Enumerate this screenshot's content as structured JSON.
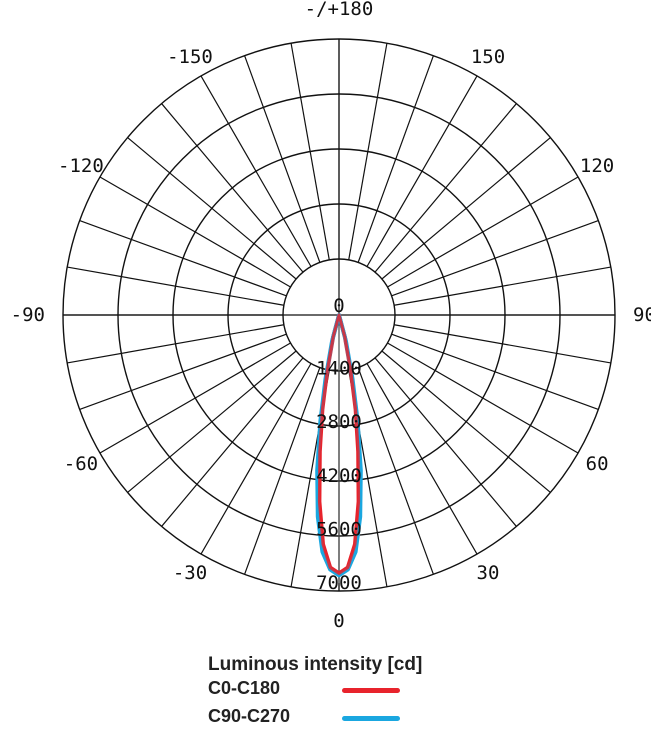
{
  "chart_data": {
    "type": "polar",
    "angle_ticks": [
      "-/+180",
      "150",
      "120",
      "90",
      "60",
      "30",
      "0",
      "-30",
      "-60",
      "-90",
      "-120",
      "-150"
    ],
    "angle_tick_values": [
      180,
      150,
      120,
      90,
      60,
      30,
      0,
      -30,
      -60,
      -90,
      -120,
      -150
    ],
    "radial_ticks": [
      "0",
      "1400",
      "2800",
      "4200",
      "5600",
      "7000"
    ],
    "radial_tick_values": [
      0,
      1400,
      2800,
      4200,
      5600,
      7000
    ],
    "radial_range": [
      0,
      7000
    ],
    "grid": true,
    "legend": {
      "title": "Luminous intensity [cd]",
      "position": "bottom-center"
    },
    "series": [
      {
        "name": "C0-C180",
        "color": "#e8232c",
        "points": [
          {
            "angle": -20,
            "value": 0
          },
          {
            "angle": -15,
            "value": 600
          },
          {
            "angle": -12,
            "value": 1500
          },
          {
            "angle": -10,
            "value": 2500
          },
          {
            "angle": -8,
            "value": 3600
          },
          {
            "angle": -6,
            "value": 4900
          },
          {
            "angle": -4,
            "value": 6000
          },
          {
            "angle": -2,
            "value": 6600
          },
          {
            "angle": 0,
            "value": 6750
          },
          {
            "angle": 2,
            "value": 6600
          },
          {
            "angle": 4,
            "value": 6000
          },
          {
            "angle": 6,
            "value": 4900
          },
          {
            "angle": 8,
            "value": 3600
          },
          {
            "angle": 10,
            "value": 2500
          },
          {
            "angle": 12,
            "value": 1500
          },
          {
            "angle": 15,
            "value": 600
          },
          {
            "angle": 20,
            "value": 0
          }
        ]
      },
      {
        "name": "C90-C270",
        "color": "#1aa7e0",
        "points": [
          {
            "angle": -20,
            "value": 0
          },
          {
            "angle": -15,
            "value": 700
          },
          {
            "angle": -12,
            "value": 1700
          },
          {
            "angle": -10,
            "value": 2800
          },
          {
            "angle": -8,
            "value": 4100
          },
          {
            "angle": -6,
            "value": 5300
          },
          {
            "angle": -4,
            "value": 6200
          },
          {
            "angle": -2,
            "value": 6650
          },
          {
            "angle": 0,
            "value": 6800
          },
          {
            "angle": 2,
            "value": 6650
          },
          {
            "angle": 4,
            "value": 6200
          },
          {
            "angle": 6,
            "value": 5300
          },
          {
            "angle": 8,
            "value": 4100
          },
          {
            "angle": 10,
            "value": 2800
          },
          {
            "angle": 12,
            "value": 1700
          },
          {
            "angle": 15,
            "value": 700
          },
          {
            "angle": 20,
            "value": 0
          }
        ]
      }
    ]
  }
}
